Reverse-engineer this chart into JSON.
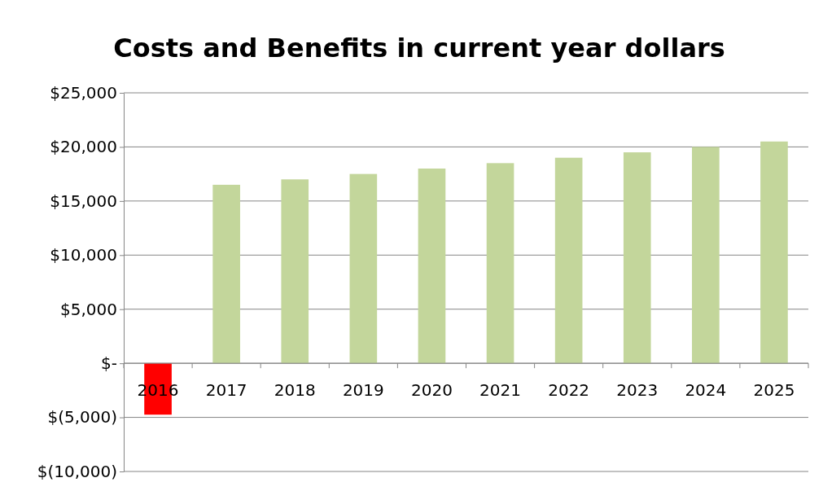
{
  "chart_data": {
    "type": "bar",
    "title": "Costs and Benefits in current year dollars",
    "categories": [
      "2016",
      "2017",
      "2018",
      "2019",
      "2020",
      "2021",
      "2022",
      "2023",
      "2024",
      "2025"
    ],
    "values": [
      -4750,
      16500,
      17000,
      17500,
      18000,
      18500,
      19000,
      19500,
      20000,
      20500
    ],
    "colors": [
      "#ff0000",
      "#c3d69b",
      "#c3d69b",
      "#c3d69b",
      "#c3d69b",
      "#c3d69b",
      "#c3d69b",
      "#c3d69b",
      "#c3d69b",
      "#c3d69b"
    ],
    "ylim": [
      -10000,
      25000
    ],
    "yticks": [
      {
        "value": -10000,
        "label": "$(10,000)"
      },
      {
        "value": -5000,
        "label": "$(5,000)"
      },
      {
        "value": 0,
        "label": "$-"
      },
      {
        "value": 5000,
        "label": "$5,000"
      },
      {
        "value": 10000,
        "label": "$10,000"
      },
      {
        "value": 15000,
        "label": "$15,000"
      },
      {
        "value": 20000,
        "label": "$20,000"
      },
      {
        "value": 25000,
        "label": "$25,000"
      }
    ],
    "grid": "y"
  }
}
